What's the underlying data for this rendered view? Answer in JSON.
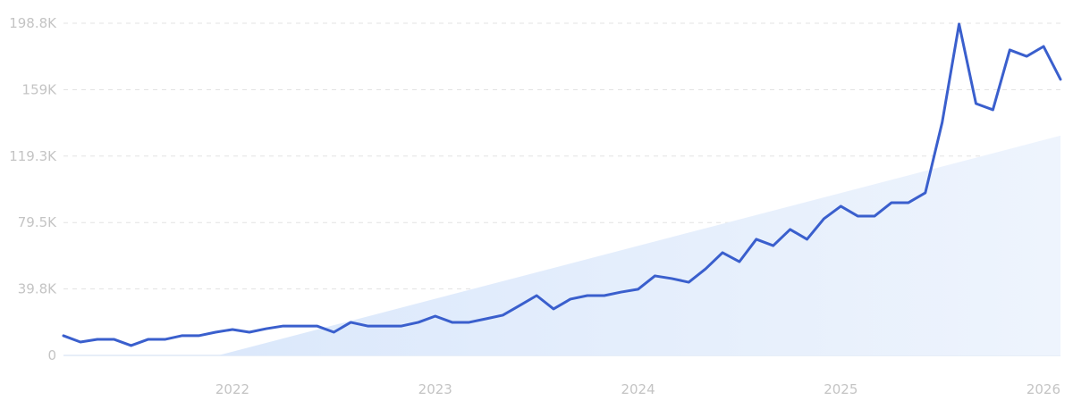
{
  "chart_data": {
    "type": "line",
    "title": "",
    "xlabel": "",
    "ylabel": "",
    "ylim": [
      0,
      198.8
    ],
    "y_unit": "K",
    "grid": true,
    "legend": "none",
    "y_ticks": [
      {
        "value": 0,
        "label": "0"
      },
      {
        "value": 39.8,
        "label": "39.8K"
      },
      {
        "value": 79.5,
        "label": "79.5K"
      },
      {
        "value": 119.3,
        "label": "119.3K"
      },
      {
        "value": 159,
        "label": "159K"
      },
      {
        "value": 198.8,
        "label": "198.8K"
      }
    ],
    "x_ticks": [
      {
        "date": "2022-01",
        "label": "2022"
      },
      {
        "date": "2023-01",
        "label": "2023"
      },
      {
        "date": "2024-01",
        "label": "2024"
      },
      {
        "date": "2025-01",
        "label": "2025"
      },
      {
        "date": "2026-01",
        "label": "2026"
      }
    ],
    "x": [
      "2021-03",
      "2021-04",
      "2021-05",
      "2021-06",
      "2021-07",
      "2021-08",
      "2021-09",
      "2021-10",
      "2021-11",
      "2021-12",
      "2022-01",
      "2022-02",
      "2022-03",
      "2022-04",
      "2022-05",
      "2022-06",
      "2022-07",
      "2022-08",
      "2022-09",
      "2022-10",
      "2022-11",
      "2022-12",
      "2023-01",
      "2023-02",
      "2023-03",
      "2023-04",
      "2023-05",
      "2023-06",
      "2023-07",
      "2023-08",
      "2023-09",
      "2023-10",
      "2023-11",
      "2023-12",
      "2024-01",
      "2024-02",
      "2024-03",
      "2024-04",
      "2024-05",
      "2024-06",
      "2024-07",
      "2024-08",
      "2024-09",
      "2024-10",
      "2024-11",
      "2024-12",
      "2025-01",
      "2025-02",
      "2025-03",
      "2025-04",
      "2025-05",
      "2025-06",
      "2025-07",
      "2025-08",
      "2025-09",
      "2025-10",
      "2025-11",
      "2025-12",
      "2026-01",
      "2026-02"
    ],
    "series": [
      {
        "values": [
          11.8,
          8.0,
          9.6,
          9.6,
          5.9,
          9.6,
          9.6,
          11.8,
          11.8,
          13.9,
          15.5,
          13.9,
          16.0,
          17.6,
          17.6,
          17.6,
          13.9,
          19.8,
          17.6,
          17.6,
          17.6,
          19.8,
          23.5,
          19.8,
          19.8,
          21.9,
          24.1,
          29.9,
          35.8,
          27.8,
          33.7,
          35.8,
          35.8,
          37.9,
          39.6,
          47.6,
          46.0,
          43.8,
          51.8,
          61.5,
          56.1,
          69.5,
          65.7,
          75.4,
          69.5,
          81.8,
          89.3,
          83.4,
          83.4,
          91.4,
          91.4,
          97.3,
          139.5,
          198.3,
          150.7,
          147.0,
          182.8,
          179.0,
          184.9,
          165.2
        ]
      }
    ],
    "trend_area": {
      "start": {
        "date": "2021-12",
        "value": 0
      },
      "end": {
        "date": "2026-02",
        "value": 131.5
      }
    },
    "colors": {
      "line": "#3a5fcd",
      "trend_fill": "#dde9fb",
      "grid": "#e3e3e3",
      "tick_text": "#c4c4c4"
    }
  }
}
